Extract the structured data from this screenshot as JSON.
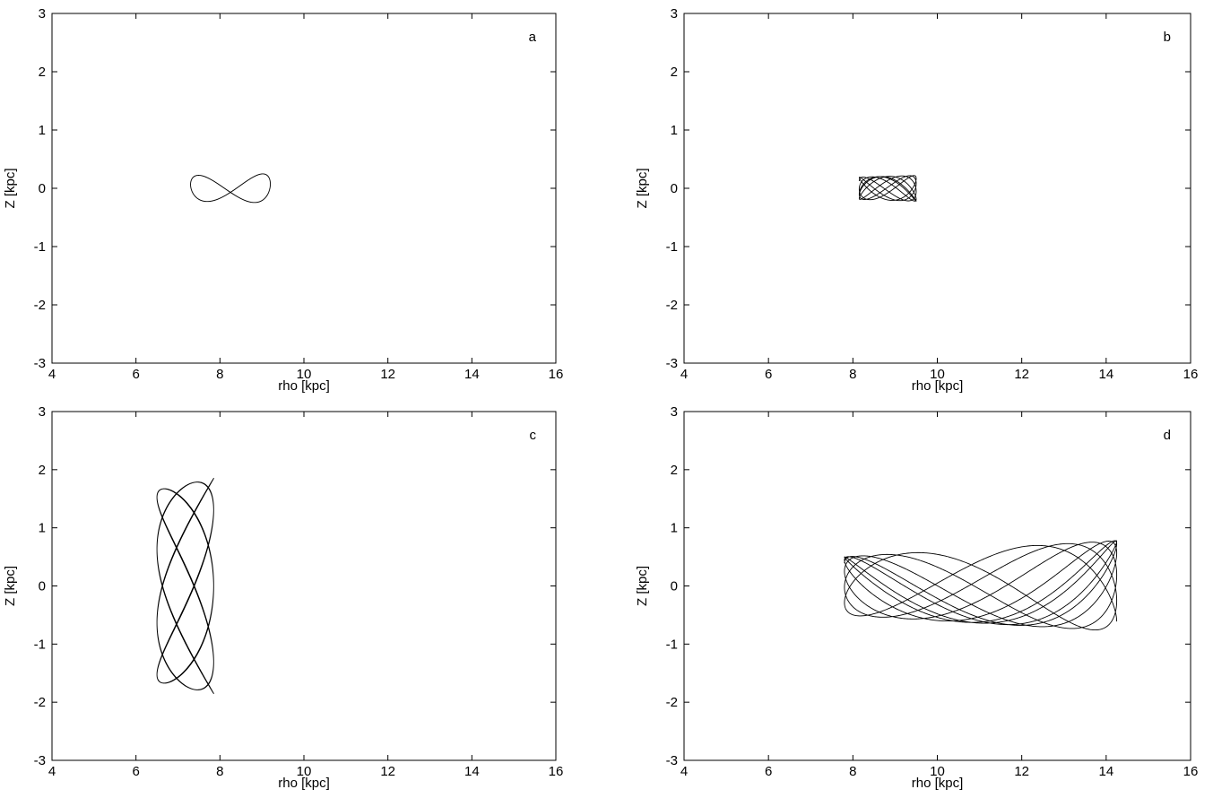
{
  "chart_data": [
    {
      "panel": "a",
      "type": "line",
      "xlabel": "rho [kpc]",
      "ylabel": "Z [kpc]",
      "xlim": [
        4,
        16
      ],
      "ylim": [
        -3,
        3
      ],
      "xticks": [
        4,
        6,
        8,
        10,
        12,
        14,
        16
      ],
      "yticks": [
        -3,
        -2,
        -1,
        0,
        1,
        2,
        3
      ],
      "grid": false,
      "orbit": {
        "rho_min": 7.3,
        "rho_max": 9.2,
        "z_max_left": 0.22,
        "z_max_right": 0.25,
        "rho_cycles": 5.5,
        "z_cycles": 11,
        "phase": 0.3
      }
    },
    {
      "panel": "b",
      "type": "line",
      "xlabel": "rho [kpc]",
      "ylabel": "Z [kpc]",
      "xlim": [
        4,
        16
      ],
      "ylim": [
        -3,
        3
      ],
      "xticks": [
        4,
        6,
        8,
        10,
        12,
        14,
        16
      ],
      "yticks": [
        -3,
        -2,
        -1,
        0,
        1,
        2,
        3
      ],
      "grid": false,
      "orbit": {
        "rho_min": 8.15,
        "rho_max": 9.5,
        "z_max_left": 0.19,
        "z_max_right": 0.22,
        "rho_cycles": 5,
        "z_cycles": 8.5,
        "phase": 0.7
      }
    },
    {
      "panel": "c",
      "type": "line",
      "xlabel": "rho [kpc]",
      "ylabel": "Z [kpc]",
      "xlim": [
        4,
        16
      ],
      "ylim": [
        -3,
        3
      ],
      "xticks": [
        4,
        6,
        8,
        10,
        12,
        14,
        16
      ],
      "yticks": [
        -3,
        -2,
        -1,
        0,
        1,
        2,
        3
      ],
      "grid": false,
      "orbit": {
        "rho_min": 6.5,
        "rho_max": 7.85,
        "z_max_left": 1.65,
        "z_max_right": 1.85,
        "rho_cycles": 12,
        "z_cycles": 7.5,
        "phase": 0.4
      }
    },
    {
      "panel": "d",
      "type": "line",
      "xlabel": "rho [kpc]",
      "ylabel": "Z [kpc]",
      "xlim": [
        4,
        16
      ],
      "ylim": [
        -3,
        3
      ],
      "xticks": [
        4,
        6,
        8,
        10,
        12,
        14,
        16
      ],
      "yticks": [
        -3,
        -2,
        -1,
        0,
        1,
        2,
        3
      ],
      "grid": false,
      "orbit": {
        "rho_min": 7.8,
        "rho_max": 14.25,
        "z_max_left": 0.5,
        "z_max_right": 0.78,
        "rho_cycles": 5.5,
        "z_cycles": 11.5,
        "phase": 0.9
      }
    }
  ]
}
